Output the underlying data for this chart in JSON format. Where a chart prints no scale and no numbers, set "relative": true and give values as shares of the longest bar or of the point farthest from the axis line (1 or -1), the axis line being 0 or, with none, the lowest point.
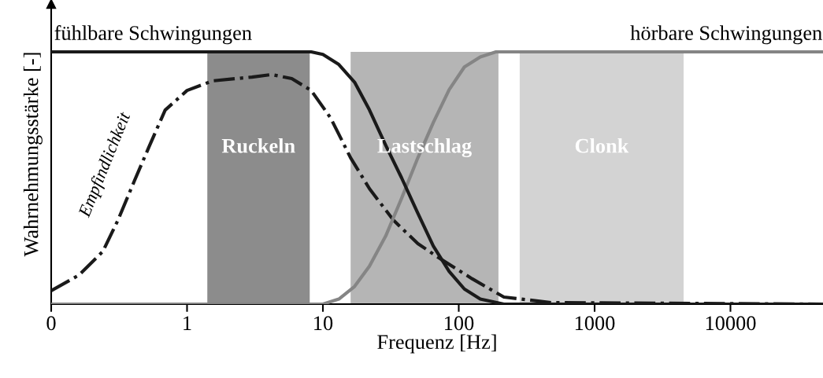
{
  "chart_data": {
    "type": "line",
    "xlabel": "Frequenz [Hz]",
    "ylabel": "Wahrnehmungsstärke [-]",
    "relative": true,
    "log": "x",
    "xlim": [
      0.1,
      48000
    ],
    "xticks": [
      {
        "value": 0.1,
        "label": "0"
      },
      1,
      10,
      100,
      1000,
      10000
    ],
    "grid": false,
    "legend": false,
    "marker": "none",
    "series": [
      {
        "name": "fühlbare Schwingungen",
        "color": "#1a1a1a",
        "line_style": "solid",
        "x": [
          0.1,
          8.2,
          10,
          13.1,
          17.1,
          22,
          29,
          38,
          50,
          65,
          85,
          110,
          144,
          215,
          48000
        ],
        "values": [
          1,
          1,
          0.99,
          0.95,
          0.88,
          0.77,
          0.63,
          0.5,
          0.36,
          0.23,
          0.13,
          0.06,
          0.02,
          0,
          0
        ]
      },
      {
        "name": "hörbare Schwingungen",
        "color": "#858585",
        "line_style": "solid",
        "x": [
          0.1,
          10,
          13.1,
          17.1,
          22,
          29,
          38,
          50,
          65,
          85,
          110,
          144,
          188,
          48000
        ],
        "values": [
          0,
          0,
          0.02,
          0.07,
          0.15,
          0.27,
          0.42,
          0.58,
          0.72,
          0.85,
          0.94,
          0.98,
          1,
          1
        ]
      },
      {
        "color": "#1a1a1a",
        "line_style": "dashdot",
        "x": [
          0.1,
          0.16,
          0.24,
          0.31,
          0.41,
          0.53,
          0.69,
          1,
          1.54,
          3.0,
          4.2,
          5.9,
          8.2,
          11.4,
          16,
          22,
          33,
          50,
          74,
          126,
          215,
          480,
          48000
        ],
        "values": [
          0.053,
          0.115,
          0.209,
          0.333,
          0.489,
          0.629,
          0.769,
          0.847,
          0.885,
          0.9,
          0.91,
          0.894,
          0.847,
          0.738,
          0.58,
          0.458,
          0.333,
          0.24,
          0.178,
          0.1,
          0.028,
          0.006,
          0
        ]
      }
    ],
    "bands": [
      {
        "axis": "x",
        "from": 1.41,
        "to": 8.0,
        "label": "Ruckeln",
        "color": "#8c8c8c"
      },
      {
        "axis": "x",
        "from": 16,
        "to": 196,
        "label": "Lastschlag",
        "color": "#b5b5b5"
      },
      {
        "axis": "x",
        "from": 281,
        "to": 4520,
        "label": "Clonk",
        "color": "#d3d3d3"
      }
    ],
    "annotations": [
      "Empfindlichkeit"
    ]
  }
}
